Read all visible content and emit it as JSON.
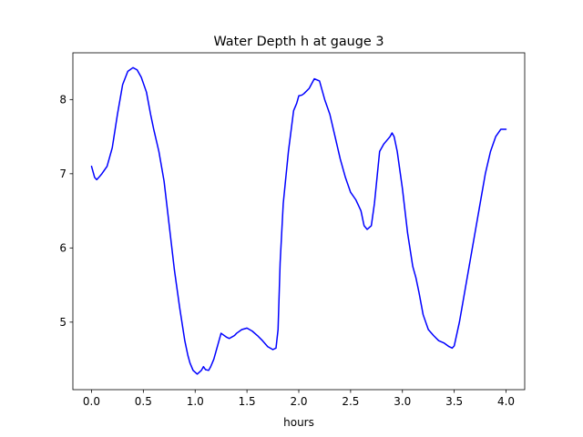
{
  "chart_data": {
    "type": "line",
    "title": "Water Depth h at gauge 3",
    "xlabel": "hours",
    "ylabel": "",
    "xlim": [
      -0.18,
      4.18
    ],
    "ylim": [
      4.09,
      8.63
    ],
    "xticks": [
      0.0,
      0.5,
      1.0,
      1.5,
      2.0,
      2.5,
      3.0,
      3.5,
      4.0
    ],
    "xtick_labels": [
      "0.0",
      "0.5",
      "1.0",
      "1.5",
      "2.0",
      "2.5",
      "3.0",
      "3.5",
      "4.0"
    ],
    "yticks": [
      5,
      6,
      7,
      8
    ],
    "ytick_labels": [
      "5",
      "6",
      "7",
      "8"
    ],
    "grid": false,
    "legend": "none",
    "series": [
      {
        "color": "#0000ff",
        "x": [
          0.0,
          0.03,
          0.05,
          0.07,
          0.1,
          0.15,
          0.2,
          0.25,
          0.3,
          0.35,
          0.4,
          0.44,
          0.48,
          0.53,
          0.57,
          0.6,
          0.65,
          0.7,
          0.75,
          0.8,
          0.85,
          0.9,
          0.93,
          0.95,
          0.98,
          1.02,
          1.06,
          1.08,
          1.1,
          1.13,
          1.15,
          1.18,
          1.2,
          1.25,
          1.3,
          1.33,
          1.38,
          1.4,
          1.45,
          1.5,
          1.55,
          1.6,
          1.65,
          1.7,
          1.75,
          1.78,
          1.8,
          1.82,
          1.85,
          1.9,
          1.95,
          1.98,
          2.0,
          2.03,
          2.05,
          2.1,
          2.15,
          2.2,
          2.25,
          2.3,
          2.35,
          2.4,
          2.45,
          2.5,
          2.55,
          2.6,
          2.63,
          2.66,
          2.7,
          2.73,
          2.78,
          2.82,
          2.85,
          2.88,
          2.9,
          2.92,
          2.95,
          3.0,
          3.05,
          3.1,
          3.13,
          3.16,
          3.2,
          3.25,
          3.3,
          3.35,
          3.4,
          3.45,
          3.48,
          3.5,
          3.55,
          3.6,
          3.65,
          3.7,
          3.75,
          3.8,
          3.85,
          3.9,
          3.95,
          4.0
        ],
        "y": [
          7.1,
          6.95,
          6.92,
          6.95,
          7.0,
          7.1,
          7.35,
          7.8,
          8.2,
          8.38,
          8.43,
          8.4,
          8.3,
          8.1,
          7.8,
          7.6,
          7.3,
          6.9,
          6.3,
          5.7,
          5.2,
          4.75,
          4.55,
          4.45,
          4.35,
          4.3,
          4.35,
          4.4,
          4.36,
          4.35,
          4.4,
          4.5,
          4.6,
          4.85,
          4.8,
          4.78,
          4.82,
          4.85,
          4.9,
          4.92,
          4.88,
          4.82,
          4.75,
          4.67,
          4.63,
          4.65,
          4.9,
          5.8,
          6.6,
          7.3,
          7.85,
          7.95,
          8.05,
          8.06,
          8.08,
          8.15,
          8.28,
          8.25,
          8.0,
          7.8,
          7.5,
          7.2,
          6.95,
          6.75,
          6.65,
          6.5,
          6.3,
          6.25,
          6.3,
          6.6,
          7.3,
          7.4,
          7.45,
          7.5,
          7.55,
          7.5,
          7.3,
          6.8,
          6.2,
          5.75,
          5.6,
          5.4,
          5.1,
          4.9,
          4.82,
          4.75,
          4.72,
          4.67,
          4.65,
          4.68,
          5.0,
          5.4,
          5.8,
          6.2,
          6.6,
          7.0,
          7.3,
          7.5,
          7.6,
          7.6
        ]
      }
    ]
  }
}
